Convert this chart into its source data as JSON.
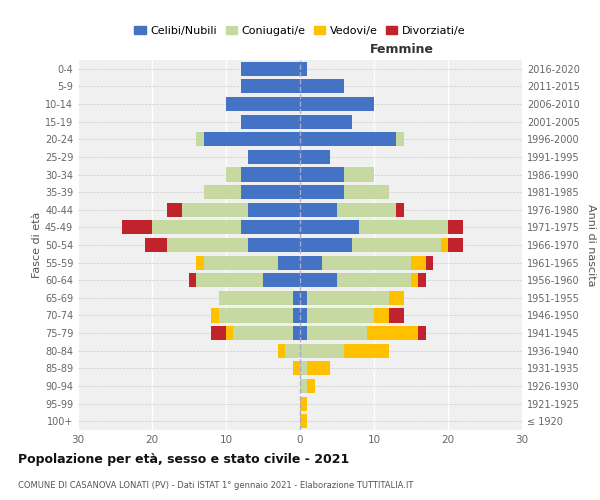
{
  "age_groups": [
    "100+",
    "95-99",
    "90-94",
    "85-89",
    "80-84",
    "75-79",
    "70-74",
    "65-69",
    "60-64",
    "55-59",
    "50-54",
    "45-49",
    "40-44",
    "35-39",
    "30-34",
    "25-29",
    "20-24",
    "15-19",
    "10-14",
    "5-9",
    "0-4"
  ],
  "birth_years": [
    "≤ 1920",
    "1921-1925",
    "1926-1930",
    "1931-1935",
    "1936-1940",
    "1941-1945",
    "1946-1950",
    "1951-1955",
    "1956-1960",
    "1961-1965",
    "1966-1970",
    "1971-1975",
    "1976-1980",
    "1981-1985",
    "1986-1990",
    "1991-1995",
    "1996-2000",
    "2001-2005",
    "2006-2010",
    "2011-2015",
    "2016-2020"
  ],
  "male": {
    "celibi": [
      0,
      0,
      0,
      0,
      0,
      1,
      1,
      1,
      5,
      3,
      7,
      8,
      7,
      8,
      8,
      7,
      13,
      8,
      10,
      8,
      8
    ],
    "coniugati": [
      0,
      0,
      0,
      0,
      2,
      8,
      10,
      10,
      9,
      10,
      11,
      12,
      9,
      5,
      2,
      0,
      1,
      0,
      0,
      0,
      0
    ],
    "vedovi": [
      0,
      0,
      0,
      1,
      1,
      1,
      1,
      0,
      0,
      1,
      0,
      0,
      0,
      0,
      0,
      0,
      0,
      0,
      0,
      0,
      0
    ],
    "divorziati": [
      0,
      0,
      0,
      0,
      0,
      2,
      0,
      0,
      1,
      0,
      3,
      4,
      2,
      0,
      0,
      0,
      0,
      0,
      0,
      0,
      0
    ]
  },
  "female": {
    "nubili": [
      0,
      0,
      0,
      0,
      0,
      1,
      1,
      1,
      5,
      3,
      7,
      8,
      5,
      6,
      6,
      4,
      13,
      7,
      10,
      6,
      1
    ],
    "coniugate": [
      0,
      0,
      1,
      1,
      6,
      8,
      9,
      11,
      10,
      12,
      12,
      12,
      8,
      6,
      4,
      0,
      1,
      0,
      0,
      0,
      0
    ],
    "vedove": [
      1,
      1,
      1,
      3,
      6,
      7,
      2,
      2,
      1,
      2,
      1,
      0,
      0,
      0,
      0,
      0,
      0,
      0,
      0,
      0,
      0
    ],
    "divorziate": [
      0,
      0,
      0,
      0,
      0,
      1,
      2,
      0,
      1,
      1,
      2,
      2,
      1,
      0,
      0,
      0,
      0,
      0,
      0,
      0,
      0
    ]
  },
  "color_celibi": "#4472c4",
  "color_coniugati": "#c6d9a0",
  "color_vedovi": "#ffc000",
  "color_divorziati": "#c0232b",
  "xlim": 30,
  "title": "Popolazione per età, sesso e stato civile - 2021",
  "subtitle": "COMUNE DI CASANOVA LONATI (PV) - Dati ISTAT 1° gennaio 2021 - Elaborazione TUTTITALIA.IT",
  "ylabel_left": "Fasce di età",
  "ylabel_right": "Anni di nascita",
  "xlabel_female": "Femmine",
  "bg_color": "#f0f0f0",
  "legend_labels": [
    "Celibi/Nubili",
    "Coniugati/e",
    "Vedovi/e",
    "Divorziati/e"
  ]
}
